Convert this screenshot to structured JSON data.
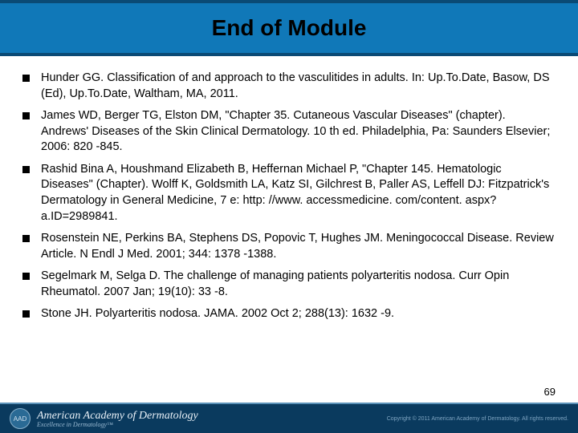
{
  "header": {
    "title": "End of Module",
    "background_color": "#1078b8",
    "border_color": "#0a4a75",
    "title_color": "#000000",
    "title_fontsize": 28
  },
  "references": [
    "Hunder GG. Classification of and approach to the vasculitides in adults. In: Up.To.Date, Basow, DS (Ed), Up.To.Date, Waltham, MA, 2011.",
    "James WD, Berger TG, Elston DM, \"Chapter 35. Cutaneous Vascular Diseases\" (chapter). Andrews' Diseases of the Skin Clinical Dermatology. 10 th ed. Philadelphia, Pa: Saunders Elsevier; 2006: 820 -845.",
    "Rashid Bina A, Houshmand Elizabeth B, Heffernan Michael P, \"Chapter 145. Hematologic Diseases\" (Chapter). Wolff K, Goldsmith LA, Katz SI, Gilchrest B, Paller AS, Leffell DJ: Fitzpatrick's Dermatology in General Medicine, 7 e: http: //www. accessmedicine. com/content. aspx? a.ID=2989841.",
    "Rosenstein NE, Perkins BA, Stephens DS, Popovic T, Hughes JM. Meningococcal Disease. Review Article. N Endl J Med. 2001; 344: 1378 -1388.",
    "Segelmark M, Selga D. The challenge of managing patients polyarteritis nodosa. Curr Opin Rheumatol. 2007 Jan; 19(10): 33 -8.",
    "Stone JH. Polyarteritis nodosa. JAMA. 2002 Oct 2; 288(13): 1632 -9."
  ],
  "page_number": "69",
  "footer": {
    "seal_text": "AAD",
    "org_name": "American Academy of Dermatology",
    "org_sub": "Excellence in Dermatology™",
    "copyright": "Copyright © 2011 American Academy of Dermatology. All rights reserved.",
    "background_color": "#0a3a5e"
  },
  "styling": {
    "body_width": 720,
    "body_height": 540,
    "bullet_color": "#000000",
    "bullet_size": 9,
    "text_color": "#000000",
    "text_fontsize": 14.5,
    "line_height": 1.35
  }
}
